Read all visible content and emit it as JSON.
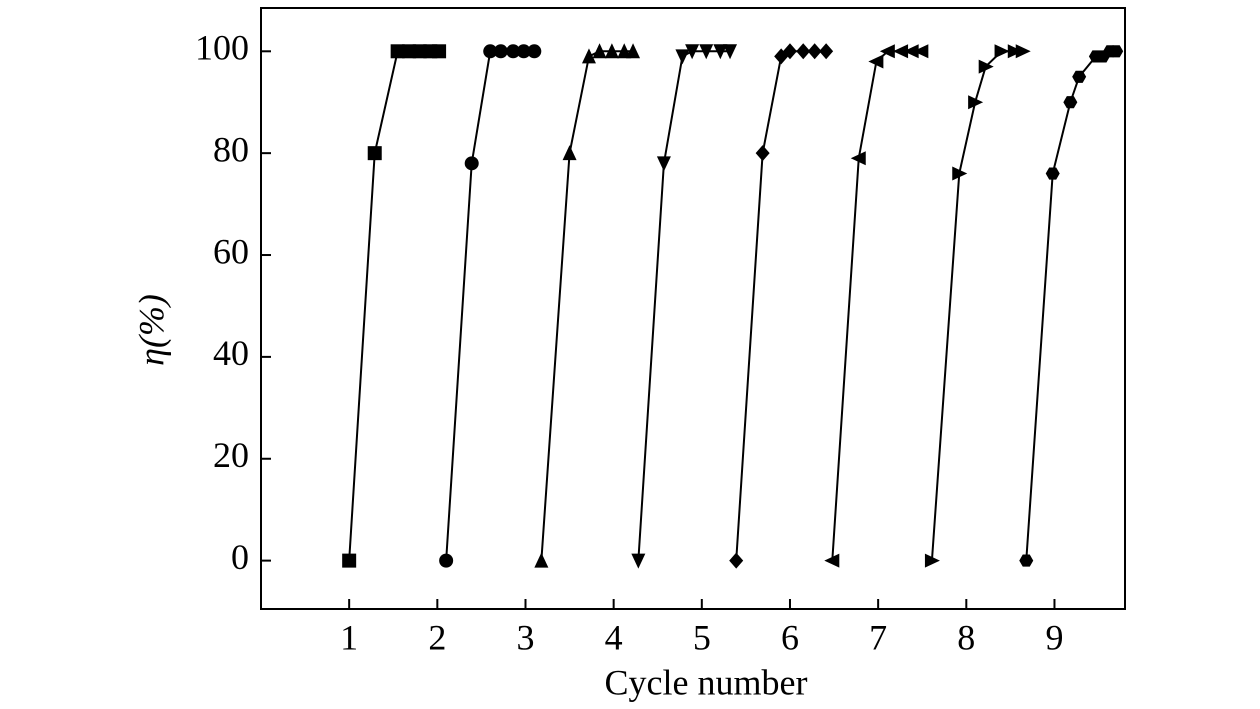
{
  "chart_data": {
    "type": "line",
    "x_label": "Cycle number",
    "y_label": "η(%)",
    "xlim": [
      0,
      9.8
    ],
    "ylim": [
      -9.5,
      108.5
    ],
    "xticks": [
      1,
      2,
      3,
      4,
      5,
      6,
      7,
      8,
      9
    ],
    "yticks": [
      0,
      20,
      40,
      60,
      80,
      100
    ],
    "series": [
      {
        "marker": "square",
        "color": "#000000",
        "x": [
          1,
          1.29,
          1.55,
          1.68,
          1.8,
          1.92,
          2.02
        ],
        "values": [
          0,
          80,
          100,
          100,
          100,
          100,
          100
        ]
      },
      {
        "marker": "circle",
        "color": "#000000",
        "x": [
          2.1,
          2.39,
          2.6,
          2.72,
          2.86,
          2.98,
          3.1
        ],
        "values": [
          0,
          78,
          100,
          100,
          100,
          100,
          100
        ]
      },
      {
        "marker": "triangle-up",
        "color": "#000000",
        "x": [
          3.18,
          3.5,
          3.72,
          3.84,
          3.98,
          4.12,
          4.22
        ],
        "values": [
          0,
          80,
          99,
          100,
          100,
          100,
          100
        ]
      },
      {
        "marker": "triangle-down",
        "color": "#000000",
        "x": [
          4.28,
          4.57,
          4.78,
          4.89,
          5.05,
          5.21,
          5.32
        ],
        "values": [
          0,
          78,
          99,
          100,
          100,
          100,
          100
        ]
      },
      {
        "marker": "diamond",
        "color": "#000000",
        "x": [
          5.39,
          5.69,
          5.9,
          6.0,
          6.15,
          6.28,
          6.41
        ],
        "values": [
          0,
          80,
          99,
          100,
          100,
          100,
          100
        ]
      },
      {
        "marker": "triangle-left",
        "color": "#000000",
        "x": [
          6.48,
          6.78,
          6.98,
          7.11,
          7.26,
          7.38,
          7.49
        ],
        "values": [
          0,
          79,
          98,
          100,
          100,
          100,
          100
        ]
      },
      {
        "marker": "triangle-right",
        "color": "#000000",
        "x": [
          7.61,
          7.92,
          8.1,
          8.22,
          8.4,
          8.55,
          8.64
        ],
        "values": [
          0,
          76,
          90,
          97,
          100,
          100,
          100
        ]
      },
      {
        "marker": "hexagon",
        "color": "#000000",
        "x": [
          8.68,
          8.98,
          9.18,
          9.28,
          9.47,
          9.55,
          9.63,
          9.7
        ],
        "values": [
          0,
          76,
          90,
          95,
          99,
          99,
          100,
          100
        ]
      }
    ]
  }
}
